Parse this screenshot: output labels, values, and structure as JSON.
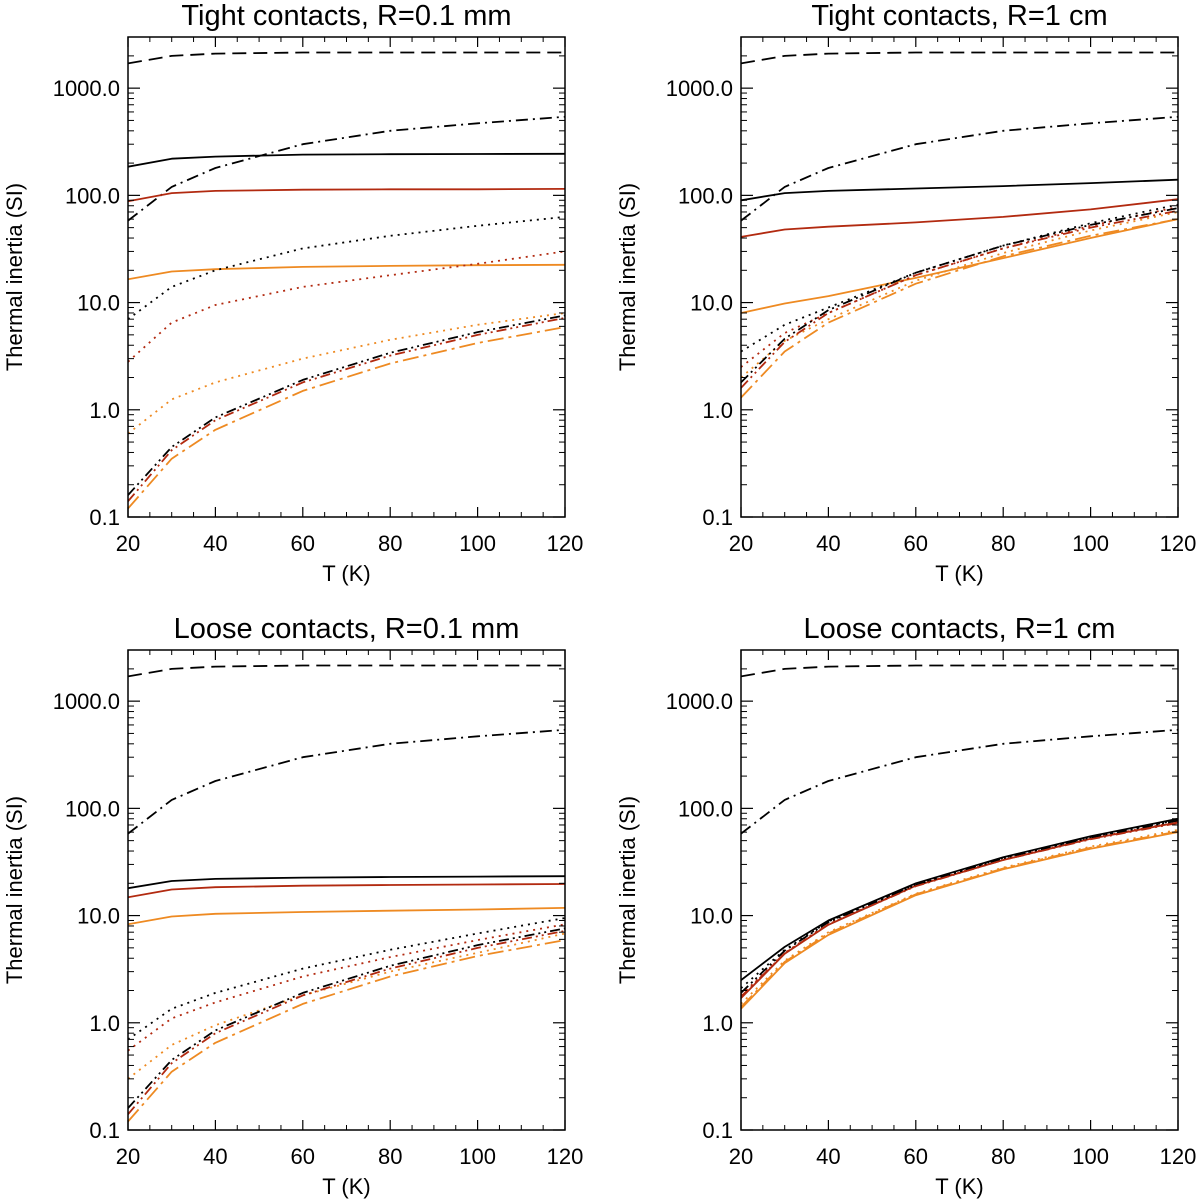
{
  "chart_data": [
    {
      "type": "line",
      "title": "Tight contacts, R=0.1 mm",
      "xlabel": "T (K)",
      "ylabel": "Thermal inertia (SI)",
      "xlim": [
        20,
        120
      ],
      "ylim": [
        0.1,
        3000
      ],
      "yscale": "log",
      "xticks": [
        "20",
        "40",
        "60",
        "80",
        "100",
        "120"
      ],
      "yticks": [
        "0.1",
        "1.0",
        "10.0",
        "100.0",
        "1000.0"
      ],
      "series": [
        {
          "name": "dashed black",
          "color": "#000000",
          "dash": "dashed",
          "x": [
            20,
            30,
            40,
            60,
            80,
            100,
            120
          ],
          "y": [
            1700,
            2000,
            2100,
            2150,
            2150,
            2150,
            2150
          ]
        },
        {
          "name": "dash-dot black",
          "color": "#000000",
          "dash": "dashdot",
          "x": [
            20,
            30,
            40,
            60,
            80,
            100,
            120
          ],
          "y": [
            58,
            120,
            180,
            300,
            400,
            470,
            540
          ]
        },
        {
          "name": "solid black",
          "color": "#000000",
          "dash": "solid",
          "x": [
            20,
            30,
            40,
            60,
            80,
            100,
            120
          ],
          "y": [
            185,
            220,
            230,
            240,
            242,
            243,
            244
          ]
        },
        {
          "name": "solid red",
          "color": "#b22a10",
          "dash": "solid",
          "x": [
            20,
            30,
            40,
            60,
            80,
            100,
            120
          ],
          "y": [
            88,
            105,
            110,
            113,
            114,
            114,
            115
          ]
        },
        {
          "name": "solid orange",
          "color": "#ee8a22",
          "dash": "solid",
          "x": [
            20,
            30,
            40,
            60,
            80,
            100,
            120
          ],
          "y": [
            16.5,
            19.5,
            20.5,
            21.5,
            22,
            22.3,
            22.5
          ]
        },
        {
          "name": "dotted black",
          "color": "#000000",
          "dash": "dotted",
          "x": [
            20,
            30,
            40,
            60,
            80,
            100,
            120
          ],
          "y": [
            7,
            14,
            20,
            32,
            42,
            52,
            63
          ]
        },
        {
          "name": "dotted red",
          "color": "#b22a10",
          "dash": "dotted",
          "x": [
            20,
            30,
            40,
            60,
            80,
            100,
            120
          ],
          "y": [
            2.8,
            6.5,
            9.5,
            14,
            18,
            23,
            30
          ]
        },
        {
          "name": "dotted orange",
          "color": "#ee8a22",
          "dash": "dotted",
          "x": [
            20,
            30,
            40,
            60,
            80,
            100,
            120
          ],
          "y": [
            0.6,
            1.25,
            1.8,
            3,
            4.5,
            6.2,
            8
          ]
        },
        {
          "name": "dash-dot-dot black",
          "color": "#000000",
          "dash": "dashdotdot",
          "x": [
            20,
            30,
            40,
            60,
            80,
            100,
            120
          ],
          "y": [
            0.16,
            0.45,
            0.85,
            1.9,
            3.4,
            5.3,
            7.6
          ]
        },
        {
          "name": "dash-dot-dot red",
          "color": "#b22a10",
          "dash": "dashdotdot",
          "x": [
            20,
            30,
            40,
            60,
            80,
            100,
            120
          ],
          "y": [
            0.14,
            0.42,
            0.8,
            1.8,
            3.2,
            5,
            7.2
          ]
        },
        {
          "name": "long-dash-dot orange",
          "color": "#ee8a22",
          "dash": "longdashdot",
          "x": [
            20,
            30,
            40,
            60,
            80,
            100,
            120
          ],
          "y": [
            0.12,
            0.35,
            0.65,
            1.5,
            2.7,
            4.2,
            5.9
          ]
        }
      ]
    },
    {
      "type": "line",
      "title": "Tight contacts, R=1 cm",
      "xlabel": "T (K)",
      "ylabel": "Thermal inertia (SI)",
      "xlim": [
        20,
        120
      ],
      "ylim": [
        0.1,
        3000
      ],
      "yscale": "log",
      "xticks": [
        "20",
        "40",
        "60",
        "80",
        "100",
        "120"
      ],
      "yticks": [
        "0.1",
        "1.0",
        "10.0",
        "100.0",
        "1000.0"
      ],
      "series": [
        {
          "name": "dashed black",
          "color": "#000000",
          "dash": "dashed",
          "x": [
            20,
            30,
            40,
            60,
            80,
            100,
            120
          ],
          "y": [
            1700,
            2000,
            2100,
            2150,
            2150,
            2150,
            2150
          ]
        },
        {
          "name": "dash-dot black",
          "color": "#000000",
          "dash": "dashdot",
          "x": [
            20,
            30,
            40,
            60,
            80,
            100,
            120
          ],
          "y": [
            58,
            120,
            180,
            300,
            400,
            470,
            540
          ]
        },
        {
          "name": "solid black",
          "color": "#000000",
          "dash": "solid",
          "x": [
            20,
            30,
            40,
            60,
            80,
            100,
            120
          ],
          "y": [
            90,
            105,
            110,
            116,
            122,
            130,
            140
          ]
        },
        {
          "name": "solid red",
          "color": "#b22a10",
          "dash": "solid",
          "x": [
            20,
            30,
            40,
            60,
            80,
            100,
            120
          ],
          "y": [
            41,
            48,
            51,
            56,
            63,
            74,
            92
          ]
        },
        {
          "name": "solid orange",
          "color": "#ee8a22",
          "dash": "solid",
          "x": [
            20,
            30,
            40,
            60,
            80,
            100,
            120
          ],
          "y": [
            8,
            9.8,
            11.5,
            17,
            26,
            40,
            60
          ]
        },
        {
          "name": "dotted black",
          "color": "#000000",
          "dash": "dotted",
          "x": [
            20,
            30,
            40,
            60,
            80,
            100,
            120
          ],
          "y": [
            3.5,
            6.2,
            9,
            19,
            34,
            55,
            82
          ]
        },
        {
          "name": "dotted red",
          "color": "#b22a10",
          "dash": "dotted",
          "x": [
            20,
            30,
            40,
            60,
            80,
            100,
            120
          ],
          "y": [
            2.5,
            5.2,
            8,
            18,
            32,
            52,
            78
          ]
        },
        {
          "name": "dotted orange",
          "color": "#ee8a22",
          "dash": "dotted",
          "x": [
            20,
            30,
            40,
            60,
            80,
            100,
            120
          ],
          "y": [
            2,
            4.4,
            7,
            16,
            29,
            47,
            70
          ]
        },
        {
          "name": "dash-dot-dot black",
          "color": "#000000",
          "dash": "dashdotdot",
          "x": [
            20,
            30,
            40,
            60,
            80,
            100,
            120
          ],
          "y": [
            1.8,
            4.6,
            8.5,
            19,
            34,
            53,
            76
          ]
        },
        {
          "name": "dash-dot-dot red",
          "color": "#b22a10",
          "dash": "dashdotdot",
          "x": [
            20,
            30,
            40,
            60,
            80,
            100,
            120
          ],
          "y": [
            1.6,
            4.3,
            8,
            18,
            32,
            50,
            72
          ]
        },
        {
          "name": "long-dash-dot orange",
          "color": "#ee8a22",
          "dash": "longdashdot",
          "x": [
            20,
            30,
            40,
            60,
            80,
            100,
            120
          ],
          "y": [
            1.3,
            3.5,
            6.5,
            15,
            27,
            42,
            60
          ]
        }
      ]
    },
    {
      "type": "line",
      "title": "Loose contacts, R=0.1 mm",
      "xlabel": "T (K)",
      "ylabel": "Thermal inertia (SI)",
      "xlim": [
        20,
        120
      ],
      "ylim": [
        0.1,
        3000
      ],
      "yscale": "log",
      "xticks": [
        "20",
        "40",
        "60",
        "80",
        "100",
        "120"
      ],
      "yticks": [
        "0.1",
        "1.0",
        "10.0",
        "100.0",
        "1000.0"
      ],
      "series": [
        {
          "name": "dashed black",
          "color": "#000000",
          "dash": "dashed",
          "x": [
            20,
            30,
            40,
            60,
            80,
            100,
            120
          ],
          "y": [
            1700,
            2000,
            2100,
            2150,
            2150,
            2150,
            2150
          ]
        },
        {
          "name": "dash-dot black",
          "color": "#000000",
          "dash": "dashdot",
          "x": [
            20,
            30,
            40,
            60,
            80,
            100,
            120
          ],
          "y": [
            58,
            120,
            180,
            300,
            400,
            470,
            540
          ]
        },
        {
          "name": "solid black",
          "color": "#000000",
          "dash": "solid",
          "x": [
            20,
            30,
            40,
            60,
            80,
            100,
            120
          ],
          "y": [
            18,
            21,
            22,
            22.6,
            22.9,
            23.1,
            23.3
          ]
        },
        {
          "name": "solid red",
          "color": "#b22a10",
          "dash": "solid",
          "x": [
            20,
            30,
            40,
            60,
            80,
            100,
            120
          ],
          "y": [
            14.8,
            17.5,
            18.4,
            19,
            19.3,
            19.5,
            19.7
          ]
        },
        {
          "name": "solid orange",
          "color": "#ee8a22",
          "dash": "solid",
          "x": [
            20,
            30,
            40,
            60,
            80,
            100,
            120
          ],
          "y": [
            8.3,
            9.8,
            10.4,
            10.8,
            11.1,
            11.4,
            11.8
          ]
        },
        {
          "name": "dotted black",
          "color": "#000000",
          "dash": "dotted",
          "x": [
            20,
            30,
            40,
            60,
            80,
            100,
            120
          ],
          "y": [
            0.7,
            1.35,
            1.9,
            3.2,
            4.8,
            6.8,
            9.5
          ]
        },
        {
          "name": "dotted red",
          "color": "#b22a10",
          "dash": "dotted",
          "x": [
            20,
            30,
            40,
            60,
            80,
            100,
            120
          ],
          "y": [
            0.55,
            1.1,
            1.55,
            2.7,
            4.1,
            5.9,
            8.3
          ]
        },
        {
          "name": "dotted orange",
          "color": "#ee8a22",
          "dash": "dotted",
          "x": [
            20,
            30,
            40,
            60,
            80,
            100,
            120
          ],
          "y": [
            0.3,
            0.62,
            0.95,
            1.8,
            3,
            4.5,
            6.8
          ]
        },
        {
          "name": "dash-dot-dot black",
          "color": "#000000",
          "dash": "dashdotdot",
          "x": [
            20,
            30,
            40,
            60,
            80,
            100,
            120
          ],
          "y": [
            0.16,
            0.45,
            0.85,
            1.9,
            3.4,
            5.3,
            7.6
          ]
        },
        {
          "name": "dash-dot-dot red",
          "color": "#b22a10",
          "dash": "dashdotdot",
          "x": [
            20,
            30,
            40,
            60,
            80,
            100,
            120
          ],
          "y": [
            0.14,
            0.42,
            0.8,
            1.8,
            3.2,
            5,
            7.2
          ]
        },
        {
          "name": "long-dash-dot orange",
          "color": "#ee8a22",
          "dash": "longdashdot",
          "x": [
            20,
            30,
            40,
            60,
            80,
            100,
            120
          ],
          "y": [
            0.12,
            0.35,
            0.65,
            1.5,
            2.7,
            4.2,
            5.9
          ]
        }
      ]
    },
    {
      "type": "line",
      "title": "Loose contacts, R=1 cm",
      "xlabel": "T (K)",
      "ylabel": "Thermal inertia (SI)",
      "xlim": [
        20,
        120
      ],
      "ylim": [
        0.1,
        3000
      ],
      "yscale": "log",
      "xticks": [
        "20",
        "40",
        "60",
        "80",
        "100",
        "120"
      ],
      "yticks": [
        "0.1",
        "1.0",
        "10.0",
        "100.0",
        "1000.0"
      ],
      "series": [
        {
          "name": "dashed black",
          "color": "#000000",
          "dash": "dashed",
          "x": [
            20,
            30,
            40,
            60,
            80,
            100,
            120
          ],
          "y": [
            1700,
            2000,
            2100,
            2150,
            2150,
            2150,
            2150
          ]
        },
        {
          "name": "dash-dot black",
          "color": "#000000",
          "dash": "dashdot",
          "x": [
            20,
            30,
            40,
            60,
            80,
            100,
            120
          ],
          "y": [
            58,
            120,
            180,
            300,
            400,
            470,
            540
          ]
        },
        {
          "name": "solid black",
          "color": "#000000",
          "dash": "solid",
          "x": [
            20,
            30,
            40,
            60,
            80,
            100,
            120
          ],
          "y": [
            2.5,
            5.1,
            9,
            20,
            35,
            55,
            80
          ]
        },
        {
          "name": "solid red",
          "color": "#b22a10",
          "dash": "solid",
          "x": [
            20,
            30,
            40,
            60,
            80,
            100,
            120
          ],
          "y": [
            1.7,
            4.4,
            8.2,
            19,
            33,
            52,
            74
          ]
        },
        {
          "name": "solid orange",
          "color": "#ee8a22",
          "dash": "solid",
          "x": [
            20,
            30,
            40,
            60,
            80,
            100,
            120
          ],
          "y": [
            1.35,
            3.6,
            6.6,
            15.5,
            27,
            42,
            60
          ]
        },
        {
          "name": "dotted black",
          "color": "#000000",
          "dash": "dotted",
          "x": [
            20,
            30,
            40,
            60,
            80,
            100,
            120
          ],
          "y": [
            2.1,
            4.8,
            8.8,
            19.5,
            34.5,
            54,
            78
          ]
        },
        {
          "name": "dotted red",
          "color": "#b22a10",
          "dash": "dotted",
          "x": [
            20,
            30,
            40,
            60,
            80,
            100,
            120
          ],
          "y": [
            1.8,
            4.5,
            8.4,
            19,
            33.5,
            52.5,
            75
          ]
        },
        {
          "name": "dotted orange",
          "color": "#ee8a22",
          "dash": "dotted",
          "x": [
            20,
            30,
            40,
            60,
            80,
            100,
            120
          ],
          "y": [
            1.5,
            3.8,
            7,
            16,
            28,
            44,
            63
          ]
        },
        {
          "name": "dash-dot-dot black",
          "color": "#000000",
          "dash": "dashdotdot",
          "x": [
            20,
            30,
            40,
            60,
            80,
            100,
            120
          ],
          "y": [
            1.9,
            4.7,
            8.7,
            19.3,
            34.2,
            53.5,
            77
          ]
        },
        {
          "name": "dash-dot-dot red",
          "color": "#b22a10",
          "dash": "dashdotdot",
          "x": [
            20,
            30,
            40,
            60,
            80,
            100,
            120
          ],
          "y": [
            1.75,
            4.45,
            8.3,
            18.8,
            33,
            51.5,
            73
          ]
        },
        {
          "name": "long-dash-dot orange",
          "color": "#ee8a22",
          "dash": "longdashdot",
          "x": [
            20,
            30,
            40,
            60,
            80,
            100,
            120
          ],
          "y": [
            1.4,
            3.7,
            6.8,
            15.8,
            27.5,
            43,
            61
          ]
        }
      ]
    }
  ]
}
